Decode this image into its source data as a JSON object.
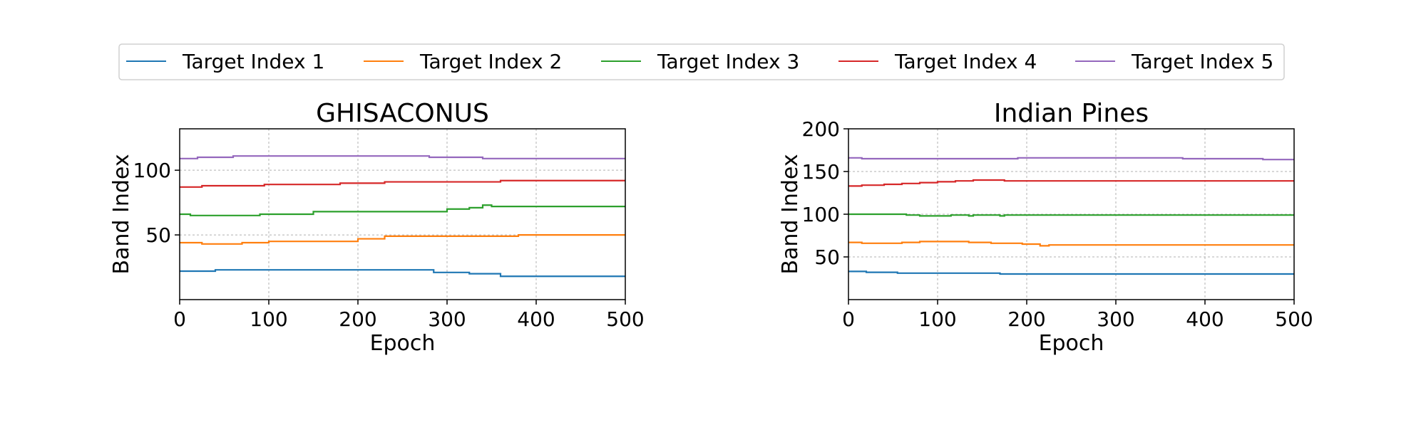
{
  "legend": {
    "entries": [
      {
        "label": "Target Index 1",
        "color": "#1f77b4"
      },
      {
        "label": "Target Index 2",
        "color": "#ff7f0e"
      },
      {
        "label": "Target Index 3",
        "color": "#2ca02c"
      },
      {
        "label": "Target Index 4",
        "color": "#d62728"
      },
      {
        "label": "Target Index 5",
        "color": "#9467bd"
      }
    ]
  },
  "chart_data": [
    {
      "type": "line",
      "title": "GHISACONUS",
      "xlabel": "Epoch",
      "ylabel": "Band Index",
      "xlim": [
        0,
        500
      ],
      "ylim": [
        0,
        132
      ],
      "xticks": [
        0,
        100,
        200,
        300,
        400,
        500
      ],
      "yticks": [
        50,
        100
      ],
      "grid": true,
      "series": [
        {
          "name": "Target Index 1",
          "color": "#1f77b4",
          "x": [
            0,
            40,
            245,
            285,
            325,
            360,
            500
          ],
          "y": [
            22,
            23,
            23,
            21,
            20,
            18,
            18
          ]
        },
        {
          "name": "Target Index 2",
          "color": "#ff7f0e",
          "x": [
            0,
            25,
            70,
            100,
            200,
            230,
            380,
            500
          ],
          "y": [
            44,
            43,
            44,
            45,
            47,
            49,
            50,
            50
          ]
        },
        {
          "name": "Target Index 3",
          "color": "#2ca02c",
          "x": [
            0,
            12,
            90,
            150,
            300,
            325,
            340,
            350,
            500
          ],
          "y": [
            66,
            65,
            66,
            68,
            70,
            71,
            73,
            72,
            72
          ]
        },
        {
          "name": "Target Index 4",
          "color": "#d62728",
          "x": [
            0,
            25,
            95,
            180,
            230,
            360,
            500
          ],
          "y": [
            87,
            88,
            89,
            90,
            91,
            92,
            92
          ]
        },
        {
          "name": "Target Index 5",
          "color": "#9467bd",
          "x": [
            0,
            20,
            60,
            280,
            340,
            500
          ],
          "y": [
            109,
            110,
            111,
            110,
            109,
            109
          ]
        }
      ]
    },
    {
      "type": "line",
      "title": "Indian Pines",
      "xlabel": "Epoch",
      "ylabel": "Band Index",
      "xlim": [
        0,
        500
      ],
      "ylim": [
        0,
        200
      ],
      "xticks": [
        0,
        100,
        200,
        300,
        400,
        500
      ],
      "yticks": [
        50,
        100,
        150,
        200
      ],
      "grid": true,
      "series": [
        {
          "name": "Target Index 1",
          "color": "#1f77b4",
          "x": [
            0,
            20,
            55,
            170,
            500
          ],
          "y": [
            33,
            32,
            31,
            30,
            30
          ]
        },
        {
          "name": "Target Index 2",
          "color": "#ff7f0e",
          "x": [
            0,
            15,
            60,
            80,
            135,
            160,
            195,
            215,
            225,
            500
          ],
          "y": [
            67,
            66,
            67,
            68,
            67,
            66,
            65,
            63,
            64,
            64
          ]
        },
        {
          "name": "Target Index 3",
          "color": "#2ca02c",
          "x": [
            0,
            65,
            80,
            115,
            135,
            140,
            170,
            175,
            500
          ],
          "y": [
            100,
            99,
            98,
            99,
            98,
            99,
            98,
            99,
            99
          ]
        },
        {
          "name": "Target Index 4",
          "color": "#d62728",
          "x": [
            0,
            15,
            40,
            60,
            80,
            100,
            120,
            140,
            175,
            500
          ],
          "y": [
            133,
            134,
            135,
            136,
            137,
            138,
            139,
            140,
            139,
            139
          ]
        },
        {
          "name": "Target Index 5",
          "color": "#9467bd",
          "x": [
            0,
            15,
            190,
            375,
            465,
            500
          ],
          "y": [
            166,
            165,
            166,
            165,
            164,
            164
          ]
        }
      ]
    }
  ]
}
